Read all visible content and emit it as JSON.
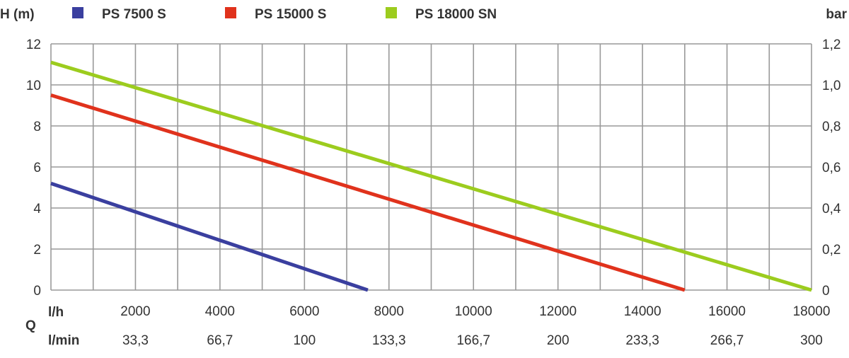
{
  "chart_data": {
    "type": "line",
    "y_left_label": "H (m)",
    "y_right_label": "bar",
    "x_prefix": "Q",
    "x_unit_primary": "l/h",
    "x_unit_secondary": "l/min",
    "xlim": [
      0,
      18000
    ],
    "ylim": [
      0,
      12
    ],
    "x_ticks": [
      2000,
      4000,
      6000,
      8000,
      10000,
      12000,
      14000,
      16000,
      18000
    ],
    "x_tick_labels": [
      "2000",
      "4000",
      "6000",
      "8000",
      "10000",
      "12000",
      "14000",
      "16000",
      "18000"
    ],
    "x_secondary_tick_labels": [
      "33,3",
      "66,7",
      "100",
      "133,3",
      "166,7",
      "200",
      "233,3",
      "266,7",
      "300"
    ],
    "y_ticks": [
      0,
      2,
      4,
      6,
      8,
      10,
      12
    ],
    "y_tick_labels": [
      "0",
      "2",
      "4",
      "6",
      "8",
      "10",
      "12"
    ],
    "y_right_tick_labels": [
      "0",
      "0,2",
      "0,4",
      "0,6",
      "0,8",
      "1,0",
      "1,2"
    ],
    "x_minor_step": 1000,
    "grid": true,
    "legend_position": "top",
    "series": [
      {
        "name": "PS 7500 S",
        "color": "#3a3f9f",
        "x": [
          0,
          7500
        ],
        "y": [
          5.2,
          0
        ]
      },
      {
        "name": "PS 15000 S",
        "color": "#e0321c",
        "x": [
          0,
          15000
        ],
        "y": [
          9.5,
          0
        ]
      },
      {
        "name": "PS 18000 SN",
        "color": "#9ccc1e",
        "x": [
          0,
          18000
        ],
        "y": [
          11.1,
          0
        ]
      }
    ]
  }
}
